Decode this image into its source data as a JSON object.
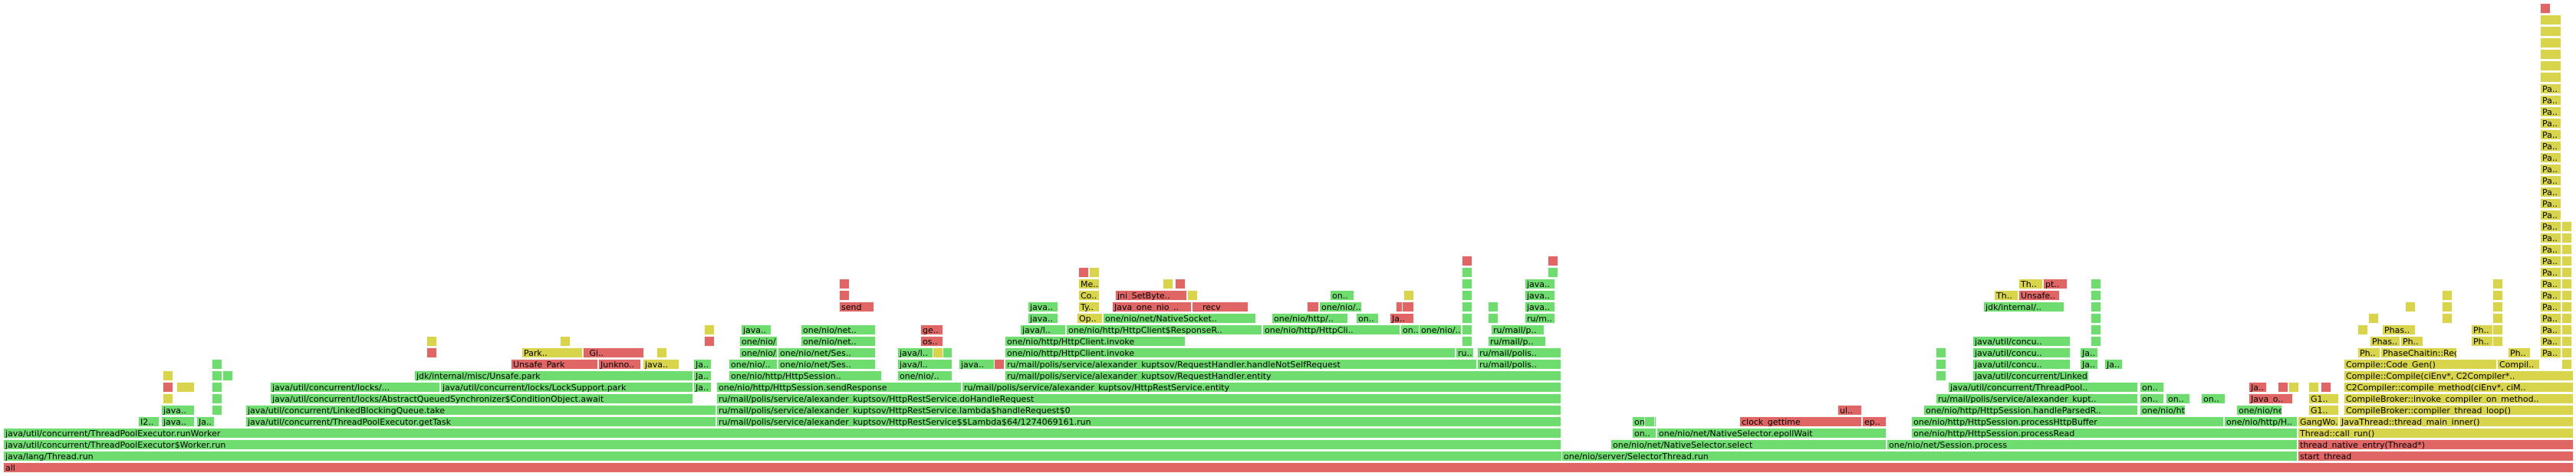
{
  "colors": {
    "green": "#6fdc6f",
    "red": "#e06666",
    "yellow": "#d8d44c",
    "orange": "#e8a34a"
  },
  "frames": {
    "all": "all",
    "thread_run": "java/lang/Thread.run",
    "worker_run": "java/util/concurrent/ThreadPoolExecutor$Worker.run",
    "run_worker": "java/util/concurrent/ThreadPoolExecutor.runWorker",
    "get_task": "java/util/concurrent/ThreadPoolExecutor.getTask",
    "lbq_take": "java/util/concurrent/LinkedBlockingQueue.take",
    "aqs_await": "java/util/concurrent/locks/AbstractQueuedSynchronizer$ConditionObject.await",
    "locks_trunc": "java/util/concurrent/locks/...",
    "lock_support_park": "java/util/concurrent/locks/LockSupport.park",
    "unsafe_park_full": "jdk/internal/misc/Unsafe.park",
    "park_trunc": "Park..",
    "unsafe_park": "Unsafe_Park",
    "gl_trunc": "_Gl..",
    "junkno": "Junkno..",
    "java_trunc": "java..",
    "lambda_run": "ru/mail/polis/service/alexander_kuptsov/HttpRestService$$Lambda$64/1274069161.run",
    "lambda_handle": "ru/mail/polis/service/alexander_kuptsov/HttpRestService.lambda$handleRequest$0",
    "do_handle": "ru/mail/polis/service/alexander_kuptsov/HttpRestService.doHandleRequest",
    "send_response": "one/nio/http/HttpSession.sendResponse",
    "handle_entity": "ru/mail/polis/service/alexander_kuptsov/HttpRestService.entity",
    "rh_entity": "ru/mail/polis/service/alexander_kuptsov/RequestHandler.entity",
    "rh_not_self": "ru/mail/polis/service/alexander_kuptsov/RequestHandler.handleNotSelfRequest",
    "client_invoke": "one/nio/http/HttpClient.invoke",
    "http_session_trunc": "one/nio/http/HttpSession..",
    "one_nio_trunc": "one/nio/..",
    "one_nio_net_ses": "one/nio/net/Ses..",
    "one_nio_net": "one/nio/net..",
    "java_l": "java/l..",
    "response_reader": "one/nio/http/HttpClient$ResponseR..",
    "http_cli": "one/nio/http/HttpCli..",
    "native_socket": "one/nio/net/NativeSocket..",
    "one_nio_http": "one/nio/http/..",
    "ops": "Op..",
    "jni_setbyte": "jni_SetByte..",
    "java_one_nio": "Java_one_nio_..",
    "recv": "__recv",
    "ty": "Ty..",
    "co": "Co..",
    "me": "Me..",
    "send": "send",
    "ge": "ge..",
    "os": "os..",
    "ru_mail_p": "ru/mail/p..",
    "ru_m": "ru/m..",
    "ru_mail_polis": "ru/mail/polis..",
    "ru_trunc": "ru..",
    "selector_thread_run": "one/nio/server/SelectorThread.run",
    "native_selector_select": "one/nio/net/NativeSelector.select",
    "native_selector_epoll": "one/nio/net/NativeSelector.epollWait",
    "clock_gettime": "clock_gettime",
    "ep": "ep..",
    "ul": "ul..",
    "on": "on..",
    "session_process": "one/nio/net/Session.process",
    "process_read": "one/nio/http/HttpSession.processRead",
    "process_http_buffer": "one/nio/http/HttpSession.processHttpBuffer",
    "handle_parsed": "one/nio/http/HttpSession.handleParsedR..",
    "one_nio_http2": "one/nio/http/H..",
    "ru_alexander_trunc": "ru/mail/polis/service/alexander_kupt..",
    "concu": "java/util/concu..",
    "tp_trunc": "java/util/concurrent/ThreadPool..",
    "linked_trunc": "java/util/concurrent/Linked..",
    "jdk_internal": "jdk/internal/..",
    "th": "Th..",
    "unsafe_trunc": "Unsafe..",
    "pt": "pt..",
    "start_thread": "start_thread",
    "thread_native_entry": "thread_native_entry(Thread*)",
    "thread_call_run": "Thread::call_run()",
    "java_thread_main": "JavaThread::thread_main_inner()",
    "compile_broker_loop": "CompileBroker::compiler_thread_loop()",
    "compile_broker_invoke": "CompileBroker::invoke_compiler_on_method..",
    "c2_compile_method": "C2Compiler::compile_method(ciEnv*, ciM..",
    "compile_ci_env": "Compile::Compile(ciEnv*, C2Compiler*..",
    "compile_code_gen": "Compile::Code_Gen()",
    "compil": "Compil..",
    "phase_chaitin": "PhaseChaitin::Regi..",
    "phas": "Phas..",
    "ph": "Ph..",
    "pa": "Pa..",
    "gangwo": "GangWo..",
    "g1": "G1..",
    "java_o": "Java_o..",
    "ja": "Ja..",
    "i2": "I2..",
    "java2": "java.."
  }
}
